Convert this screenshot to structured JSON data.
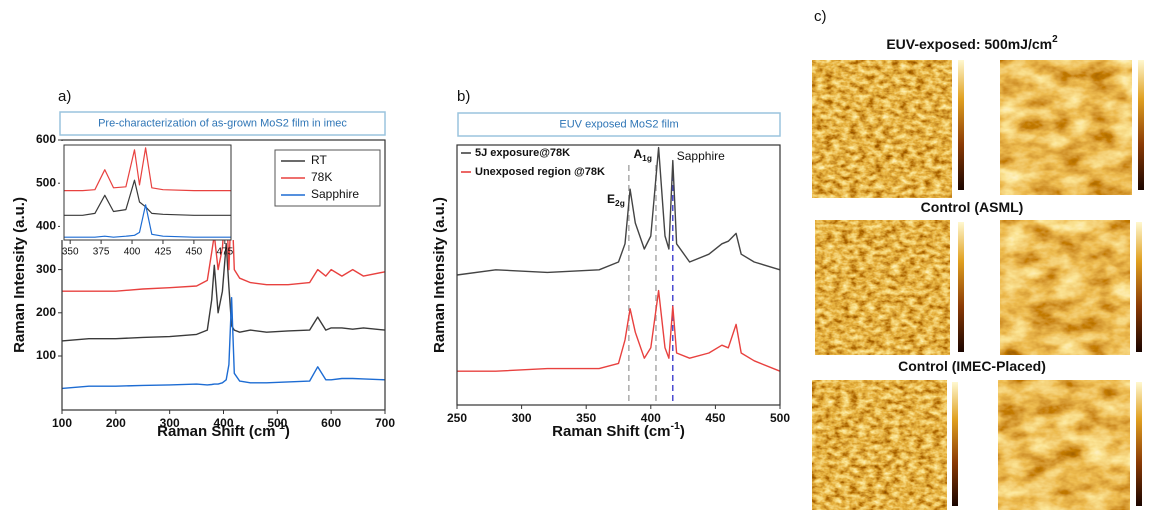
{
  "chart_data": [
    {
      "type": "line",
      "panel_label": "a)",
      "title": "Pre-characterization of as-grown MoS2 film in imec",
      "x_label": {
        "text": "Raman Shift (cm",
        "sup": "-1",
        "tail": ")"
      },
      "y_label": "Raman Intensity (a.u.)",
      "x": [
        100,
        150,
        200,
        250,
        300,
        350,
        370,
        378,
        383,
        390,
        398,
        405,
        410,
        415,
        420,
        430,
        450,
        480,
        520,
        560,
        575,
        590,
        600,
        620,
        640,
        660,
        700
      ],
      "series": [
        {
          "name": "RT",
          "color": "#3a3a3a",
          "values": [
            135,
            140,
            140,
            143,
            145,
            150,
            160,
            230,
            310,
            200,
            250,
            360,
            260,
            170,
            160,
            155,
            160,
            155,
            158,
            160,
            190,
            160,
            165,
            165,
            162,
            165,
            160
          ]
        },
        {
          "name": "78K",
          "color": "#e8413f",
          "values": [
            250,
            250,
            250,
            255,
            258,
            262,
            275,
            340,
            380,
            300,
            350,
            470,
            300,
            475,
            300,
            280,
            270,
            265,
            265,
            270,
            300,
            285,
            300,
            285,
            300,
            285,
            295
          ]
        },
        {
          "name": "Sapphire",
          "color": "#1d6cd3",
          "values": [
            25,
            30,
            30,
            32,
            33,
            35,
            33,
            34,
            35,
            35,
            38,
            45,
            80,
            235,
            60,
            42,
            38,
            38,
            40,
            42,
            75,
            45,
            45,
            48,
            48,
            47,
            45
          ]
        }
      ],
      "xlim": [
        100,
        700
      ],
      "xticks": [
        100,
        200,
        300,
        400,
        500,
        600,
        700
      ],
      "ylim": [
        -25,
        600
      ],
      "yticks": [
        100,
        200,
        300,
        400,
        500,
        600
      ],
      "legend": "upper right"
    },
    {
      "type": "line",
      "inset": true,
      "x": [
        345,
        360,
        370,
        378,
        385,
        395,
        402,
        406,
        411,
        416,
        425,
        450,
        480
      ],
      "series": [
        {
          "color": "#3a3a3a",
          "values": [
            26,
            26,
            28,
            47,
            30,
            32,
            63,
            40,
            35,
            28,
            27,
            26,
            26
          ]
        },
        {
          "color": "#e8413f",
          "values": [
            52,
            52,
            53,
            74,
            55,
            56,
            95,
            58,
            97,
            55,
            53,
            52,
            52
          ]
        },
        {
          "color": "#1d6cd3",
          "values": [
            3,
            3,
            3,
            4,
            3,
            4,
            5,
            8,
            37,
            6,
            4,
            3,
            3
          ]
        }
      ],
      "xlim": [
        345,
        480
      ],
      "xticks": [
        350,
        375,
        400,
        425,
        450,
        475
      ],
      "ylim": [
        0,
        100
      ],
      "yticks": []
    },
    {
      "type": "line",
      "panel_label": "b)",
      "title": "EUV exposed MoS2 film",
      "x_label": {
        "text": "Raman Shift (cm",
        "sup": "-1",
        "tail": ")"
      },
      "y_label": "Raman Intensity (a.u.)",
      "x": [
        250,
        280,
        320,
        360,
        375,
        380,
        384,
        388,
        395,
        400,
        406,
        411,
        414,
        417,
        420,
        430,
        445,
        455,
        460,
        466,
        470,
        480,
        500
      ],
      "series": [
        {
          "name": "5J exposure@78K",
          "color": "#444444",
          "values": [
            50,
            52,
            51,
            52,
            55,
            62,
            83,
            70,
            60,
            65,
            99,
            65,
            60,
            94,
            62,
            55,
            58,
            62,
            63,
            66,
            58,
            55,
            52
          ]
        },
        {
          "name": "Unexposed region @78K",
          "color": "#e8413f",
          "values": [
            13,
            13,
            14,
            14,
            16,
            25,
            37,
            28,
            18,
            22,
            44,
            22,
            18,
            38,
            20,
            18,
            20,
            23,
            22,
            31,
            20,
            17,
            13
          ]
        }
      ],
      "vlines": [
        {
          "x": 383,
          "color": "#aaaaaa",
          "label": {
            "text": "E",
            "sub": "2g"
          }
        },
        {
          "x": 404,
          "color": "#aaaaaa",
          "label": {
            "text": "A",
            "sub": "1g"
          }
        },
        {
          "x": 417,
          "color": "#4a4ad0",
          "label": {
            "text": "Sapphire"
          }
        }
      ],
      "xlim": [
        250,
        500
      ],
      "xticks": [
        250,
        300,
        350,
        400,
        450,
        500
      ],
      "ylim": [
        0,
        100
      ],
      "yticks": [],
      "legend": "upper left"
    }
  ],
  "afm_panel": {
    "panel_label": "c)",
    "rows": [
      {
        "title": {
          "text": "EUV-exposed: 500mJ/cm",
          "sup": "2"
        }
      },
      {
        "title": {
          "text": "Control (ASML)"
        }
      },
      {
        "title": {
          "text": "Control (IMEC-Placed)"
        }
      }
    ]
  }
}
